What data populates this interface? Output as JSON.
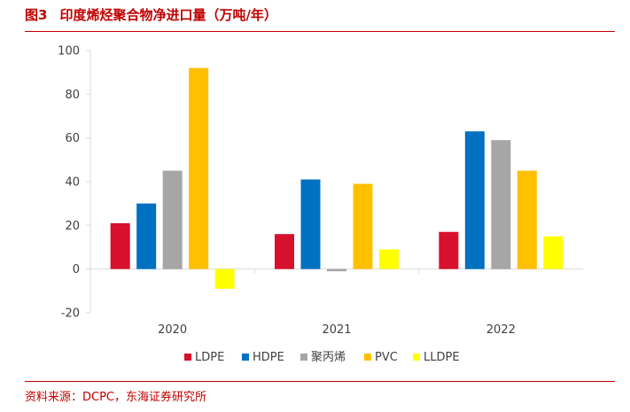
{
  "header": {
    "figure_label": "图3",
    "title": "印度烯烃聚合物净进口量（万吨/年）"
  },
  "footer": {
    "source": "资料来源：DCPC，东海证券研究所"
  },
  "colors": {
    "accent": "#c00000",
    "LDPE": "#d7102d",
    "HDPE": "#0070c0",
    "聚丙烯": "#a6a6a6",
    "PVC": "#ffc000",
    "LLDPE": "#ffff00"
  },
  "chart_data": {
    "type": "bar",
    "categories": [
      "2020",
      "2021",
      "2022"
    ],
    "series": [
      {
        "name": "LDPE",
        "values": [
          21,
          16,
          17
        ]
      },
      {
        "name": "HDPE",
        "values": [
          30,
          41,
          63
        ]
      },
      {
        "name": "聚丙烯",
        "values": [
          45,
          -1,
          59
        ]
      },
      {
        "name": "PVC",
        "values": [
          92,
          39,
          45
        ]
      },
      {
        "name": "LLDPE",
        "values": [
          -9,
          9,
          15
        ]
      }
    ],
    "ylim": [
      -20,
      100
    ],
    "yticks": [
      -20,
      0,
      20,
      40,
      60,
      80,
      100
    ],
    "grid": false,
    "legend": "bottom"
  }
}
